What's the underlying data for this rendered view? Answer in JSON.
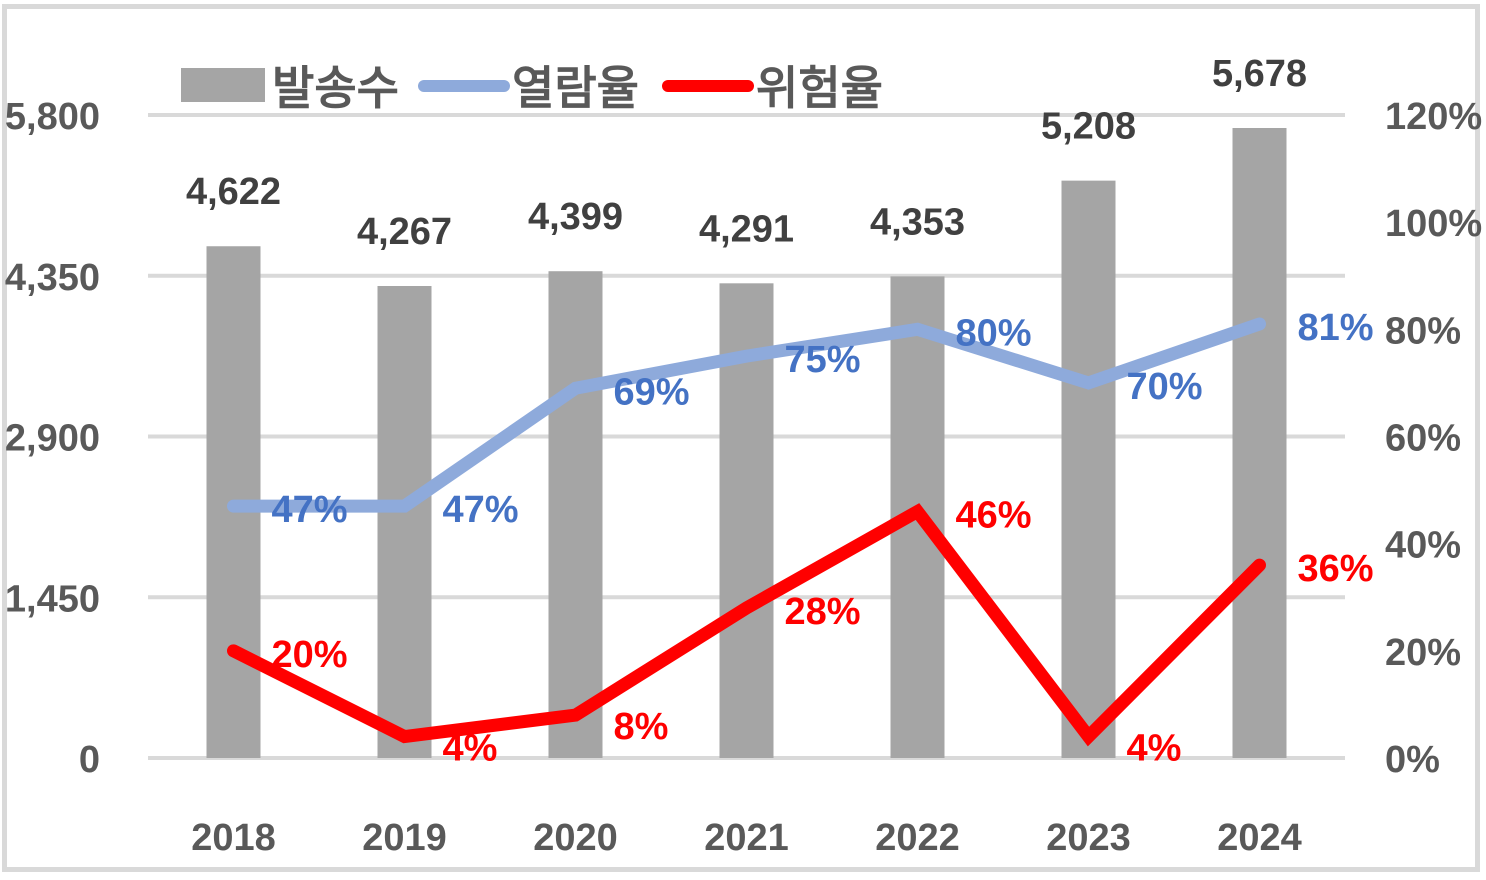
{
  "chart_data": {
    "type": "bar+line",
    "title": "",
    "categories": [
      "2018",
      "2019",
      "2020",
      "2021",
      "2022",
      "2023",
      "2024"
    ],
    "series": [
      {
        "name": "발송수",
        "type": "bar",
        "axis": "left",
        "color": "#a5a5a5",
        "values": [
          4622,
          4267,
          4399,
          4291,
          4353,
          5208,
          5678
        ],
        "labels": [
          "4,622",
          "4,267",
          "4,399",
          "4,291",
          "4,353",
          "5,208",
          "5,678"
        ]
      },
      {
        "name": "열람율",
        "type": "line",
        "axis": "right",
        "color": "#8eaadb",
        "label_color": "#4472c4",
        "values": [
          47,
          47,
          69,
          75,
          80,
          70,
          81
        ],
        "labels": [
          "47%",
          "47%",
          "69%",
          "75%",
          "80%",
          "70%",
          "81%"
        ]
      },
      {
        "name": "위험율",
        "type": "line",
        "axis": "right",
        "color": "#ff0000",
        "label_color": "#ff0000",
        "values": [
          20,
          4,
          8,
          28,
          46,
          4,
          36
        ],
        "labels": [
          "20%",
          "4%",
          "8%",
          "28%",
          "46%",
          "4%",
          "36%"
        ]
      }
    ],
    "left_axis": {
      "ticks": [
        "0",
        "1,450",
        "2,900",
        "4,350",
        "5,800"
      ],
      "ylim": [
        0,
        5800
      ]
    },
    "right_axis": {
      "ticks": [
        "0%",
        "20%",
        "40%",
        "60%",
        "80%",
        "100%",
        "120%"
      ],
      "ylim": [
        0,
        120
      ]
    },
    "xlabel": "",
    "ylabel": "",
    "grid": true,
    "legend_position": "top"
  },
  "legend": {
    "items": [
      {
        "label": "발송수",
        "color": "#a5a5a5"
      },
      {
        "label": "열람율",
        "color": "#8eaadb"
      },
      {
        "label": "위험율",
        "color": "#ff0000"
      }
    ]
  }
}
